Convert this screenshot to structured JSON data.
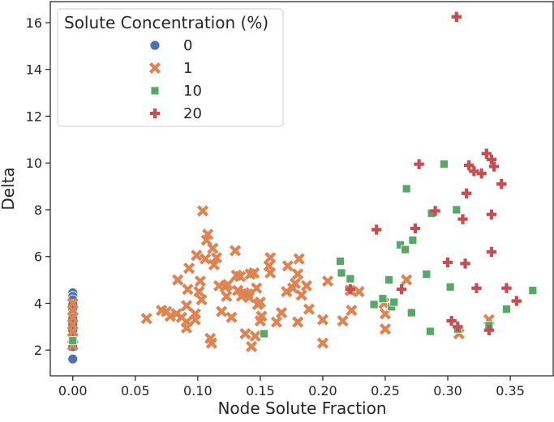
{
  "chart_data": {
    "type": "scatter",
    "xlabel": "Node Solute Fraction",
    "ylabel": "Delta",
    "xlim": [
      -0.018,
      0.385
    ],
    "ylim": [
      0.9,
      16.9
    ],
    "xticks": [
      0.0,
      0.05,
      0.1,
      0.15,
      0.2,
      0.25,
      0.3,
      0.35
    ],
    "xtick_labels": [
      "0.00",
      "0.05",
      "0.10",
      "0.15",
      "0.20",
      "0.25",
      "0.30",
      "0.35"
    ],
    "yticks": [
      2,
      4,
      6,
      8,
      10,
      12,
      14,
      16
    ],
    "ytick_labels": [
      "2",
      "4",
      "6",
      "8",
      "10",
      "12",
      "14",
      "16"
    ],
    "grid": false,
    "legend": {
      "title": "Solute Concentration (%)",
      "placement": "top-left"
    },
    "series": [
      {
        "name": "0",
        "color": "#4c72b0",
        "marker": "circle",
        "points": [
          [
            0,
            4.45
          ],
          [
            0,
            4.3
          ],
          [
            0,
            4.15
          ],
          [
            0,
            3.95
          ],
          [
            0,
            3.75
          ],
          [
            0,
            3.55
          ],
          [
            0,
            3.35
          ],
          [
            0,
            3.1
          ],
          [
            0,
            2.85
          ],
          [
            0,
            2.6
          ],
          [
            0,
            2.35
          ],
          [
            0,
            2.15
          ],
          [
            0,
            1.62
          ]
        ]
      },
      {
        "name": "1",
        "color": "#dd8452",
        "marker": "x",
        "points": [
          [
            0,
            4.0
          ],
          [
            0,
            3.7
          ],
          [
            0,
            3.4
          ],
          [
            0,
            3.1
          ],
          [
            0,
            2.8
          ],
          [
            0,
            2.5
          ],
          [
            0,
            2.2
          ],
          [
            0.059,
            3.35
          ],
          [
            0.071,
            3.7
          ],
          [
            0.075,
            3.65
          ],
          [
            0.078,
            3.45
          ],
          [
            0.083,
            3.55
          ],
          [
            0.084,
            5.0
          ],
          [
            0.087,
            3.4
          ],
          [
            0.091,
            3.2
          ],
          [
            0.091,
            3.9
          ],
          [
            0.091,
            2.95
          ],
          [
            0.092,
            4.6
          ],
          [
            0.093,
            5.5
          ],
          [
            0.098,
            3.55
          ],
          [
            0.098,
            3.3
          ],
          [
            0.099,
            6.05
          ],
          [
            0.101,
            4.5
          ],
          [
            0.102,
            4.95
          ],
          [
            0.103,
            4.15
          ],
          [
            0.104,
            7.95
          ],
          [
            0.106,
            5.9
          ],
          [
            0.107,
            6.7
          ],
          [
            0.108,
            6.95
          ],
          [
            0.11,
            2.5
          ],
          [
            0.111,
            2.3
          ],
          [
            0.112,
            6.35
          ],
          [
            0.113,
            5.65
          ],
          [
            0.115,
            5.95
          ],
          [
            0.117,
            4.75
          ],
          [
            0.119,
            3.65
          ],
          [
            0.122,
            4.7
          ],
          [
            0.123,
            4.3
          ],
          [
            0.124,
            4.8
          ],
          [
            0.127,
            3.4
          ],
          [
            0.13,
            6.25
          ],
          [
            0.131,
            5.2
          ],
          [
            0.132,
            4.55
          ],
          [
            0.134,
            5.15
          ],
          [
            0.135,
            4.3
          ],
          [
            0.137,
            4.45
          ],
          [
            0.138,
            2.7
          ],
          [
            0.14,
            4.4
          ],
          [
            0.141,
            4.25
          ],
          [
            0.142,
            5.25
          ],
          [
            0.143,
            2.15
          ],
          [
            0.145,
            5.3
          ],
          [
            0.146,
            2.6
          ],
          [
            0.147,
            4.65
          ],
          [
            0.148,
            3.95
          ],
          [
            0.15,
            3.25
          ],
          [
            0.15,
            4.05
          ],
          [
            0.151,
            3.45
          ],
          [
            0.157,
            5.6
          ],
          [
            0.158,
            5.95
          ],
          [
            0.158,
            5.3
          ],
          [
            0.163,
            3.2
          ],
          [
            0.167,
            3.6
          ],
          [
            0.171,
            4.5
          ],
          [
            0.172,
            5.6
          ],
          [
            0.176,
            4.65
          ],
          [
            0.178,
            4.85
          ],
          [
            0.18,
            3.2
          ],
          [
            0.181,
            5.9
          ],
          [
            0.18,
            5.25
          ],
          [
            0.183,
            4.35
          ],
          [
            0.187,
            4.75
          ],
          [
            0.189,
            3.75
          ],
          [
            0.2,
            3.3
          ],
          [
            0.2,
            2.3
          ],
          [
            0.204,
            4.95
          ],
          [
            0.216,
            3.25
          ],
          [
            0.222,
            4.55
          ],
          [
            0.223,
            3.7
          ],
          [
            0.229,
            4.5
          ],
          [
            0.249,
            4.0
          ],
          [
            0.25,
            3.55
          ],
          [
            0.25,
            2.9
          ],
          [
            0.267,
            5.0
          ],
          [
            0.309,
            2.7
          ],
          [
            0.333,
            3.3
          ]
        ]
      },
      {
        "name": "10",
        "color": "#55a868",
        "marker": "square",
        "points": [
          [
            0,
            2.4
          ],
          [
            0.153,
            2.7
          ],
          [
            0.214,
            5.8
          ],
          [
            0.215,
            5.3
          ],
          [
            0.222,
            5.05
          ],
          [
            0.241,
            3.95
          ],
          [
            0.248,
            4.2
          ],
          [
            0.253,
            5.0
          ],
          [
            0.255,
            3.85
          ],
          [
            0.257,
            4.05
          ],
          [
            0.262,
            6.5
          ],
          [
            0.266,
            6.3
          ],
          [
            0.267,
            8.9
          ],
          [
            0.271,
            3.6
          ],
          [
            0.272,
            6.7
          ],
          [
            0.283,
            5.25
          ],
          [
            0.286,
            2.8
          ],
          [
            0.287,
            7.85
          ],
          [
            0.297,
            9.95
          ],
          [
            0.302,
            4.7
          ],
          [
            0.307,
            8.0
          ],
          [
            0.308,
            2.9
          ],
          [
            0.333,
            3.05
          ],
          [
            0.347,
            3.75
          ],
          [
            0.368,
            4.55
          ]
        ]
      },
      {
        "name": "20",
        "color": "#c44e52",
        "marker": "plus",
        "points": [
          [
            0.222,
            4.6
          ],
          [
            0.243,
            7.15
          ],
          [
            0.263,
            4.6
          ],
          [
            0.274,
            7.2
          ],
          [
            0.277,
            9.95
          ],
          [
            0.29,
            7.95
          ],
          [
            0.3,
            5.75
          ],
          [
            0.303,
            3.25
          ],
          [
            0.307,
            16.25
          ],
          [
            0.308,
            3.0
          ],
          [
            0.312,
            7.6
          ],
          [
            0.314,
            5.7
          ],
          [
            0.315,
            8.7
          ],
          [
            0.317,
            9.9
          ],
          [
            0.321,
            9.65
          ],
          [
            0.323,
            4.65
          ],
          [
            0.327,
            9.55
          ],
          [
            0.331,
            10.4
          ],
          [
            0.333,
            2.85
          ],
          [
            0.335,
            10.15
          ],
          [
            0.335,
            6.2
          ],
          [
            0.335,
            7.8
          ],
          [
            0.337,
            9.85
          ],
          [
            0.343,
            9.1
          ],
          [
            0.347,
            4.65
          ],
          [
            0.355,
            4.1
          ]
        ]
      }
    ]
  }
}
